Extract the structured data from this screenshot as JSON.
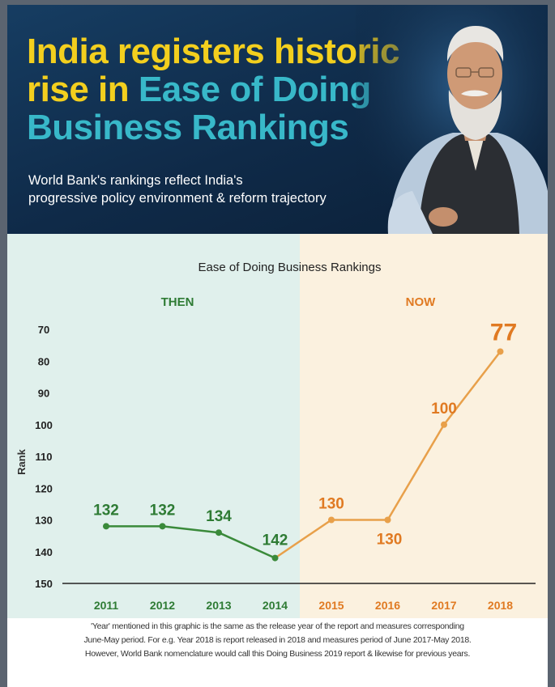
{
  "header": {
    "headline": {
      "line1": "India registers historic",
      "line2_a": "rise in ",
      "line2_b": "Ease of Doing",
      "line3": "Business Rankings"
    },
    "subtitle_line1": "World Bank's rankings reflect India's",
    "subtitle_line2": "progressive policy environment & reform trajectory"
  },
  "colors": {
    "headline_yellow": "#f3cf1e",
    "headline_teal": "#38b8c9",
    "then_bg": "#e0f0ec",
    "now_bg": "#fbf1df",
    "then_line": "#3a8a3a",
    "now_line": "#e8a04a",
    "then_label": "#2e7b34",
    "now_label": "#e07a22"
  },
  "chart_data": {
    "type": "line",
    "title": "Ease of Doing Business Rankings",
    "ylabel": "Rank",
    "xlabel": "",
    "y_inverted": true,
    "ylim": [
      150,
      70
    ],
    "yticks": [
      70,
      80,
      90,
      100,
      110,
      120,
      130,
      140,
      150
    ],
    "grid": false,
    "categories": [
      "2011",
      "2012",
      "2013",
      "2014",
      "2015",
      "2016",
      "2017",
      "2018"
    ],
    "periods": [
      {
        "label": "THEN",
        "years": [
          "2011",
          "2012",
          "2013",
          "2014"
        ]
      },
      {
        "label": "NOW",
        "years": [
          "2015",
          "2016",
          "2017",
          "2018"
        ]
      }
    ],
    "series": [
      {
        "values": [
          132,
          132,
          134,
          142,
          130,
          130,
          100,
          77
        ]
      }
    ]
  },
  "footnote": {
    "line1": "'Year' mentioned in this graphic is the same as the release year of the report and measures corresponding",
    "line2": "June-May period. For e.g. Year 2018 is report released in 2018 and measures period of June 2017-May 2018.",
    "line3": "However, World Bank nomenclature would call this Doing Business 2019 report & likewise for previous years."
  }
}
